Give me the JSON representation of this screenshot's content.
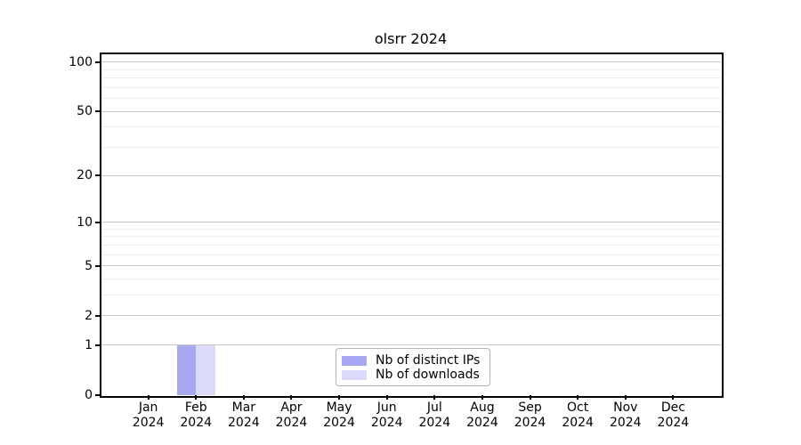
{
  "page": {
    "background": "#ffffff"
  },
  "chart_data": {
    "type": "bar",
    "title": "olsrr 2024",
    "months": [
      "Jan",
      "Feb",
      "Mar",
      "Apr",
      "May",
      "Jun",
      "Jul",
      "Aug",
      "Sep",
      "Oct",
      "Nov",
      "Dec"
    ],
    "year_label": "2024",
    "series": [
      {
        "name": "Nb of distinct IPs",
        "color": "#a8a8f2",
        "values": [
          0,
          1,
          0,
          0,
          0,
          0,
          0,
          0,
          0,
          0,
          0,
          0
        ]
      },
      {
        "name": "Nb of downloads",
        "color": "#dbdbf9",
        "values": [
          0,
          1,
          0,
          0,
          0,
          0,
          0,
          0,
          0,
          0,
          0,
          0
        ]
      }
    ],
    "y_axis": {
      "scale": "log1p",
      "major_ticks": [
        0,
        1,
        2,
        5,
        10,
        20,
        50,
        100
      ],
      "minor_gridlines": [
        3,
        4,
        6,
        7,
        8,
        9,
        30,
        40,
        60,
        70,
        80,
        90
      ],
      "ylim": [
        0,
        113
      ]
    },
    "x_axis": {
      "tick_count": 12
    },
    "legend": {
      "position": "lower center"
    },
    "grid": true
  },
  "colors": {
    "grid_major": "#c8c8c8",
    "grid_minor": "#ececec",
    "spine": "#000000",
    "legend_border": "#b4b4b4",
    "text": "#000000"
  }
}
